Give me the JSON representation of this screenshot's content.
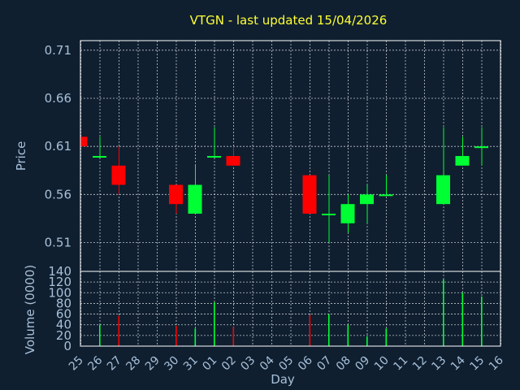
{
  "chart_data": {
    "type": "candlestick",
    "title": "VTGN - last updated 15/04/2026",
    "xlabel": "Day",
    "ylabel_price": "Price",
    "ylabel_volume": "Volume (0000)",
    "price_ylim": [
      0.48,
      0.72
    ],
    "price_ticks": [
      "0.71",
      "0.66",
      "0.61",
      "0.56",
      "0.51"
    ],
    "volume_ylim": [
      0,
      140
    ],
    "volume_ticks": [
      "140",
      "120",
      "100",
      "80",
      "60",
      "40",
      "20",
      "0"
    ],
    "grid": true,
    "colors": {
      "up": "#00ff33",
      "down": "#ff0000",
      "title": "#ffff33",
      "text": "#a8c0d8",
      "background": "#0f1f30"
    },
    "days": [
      {
        "label": "25",
        "open": 0.62,
        "high": 0.62,
        "low": 0.61,
        "close": 0.61,
        "volume": 0
      },
      {
        "label": "26",
        "open": 0.6,
        "high": 0.62,
        "low": 0.6,
        "close": 0.6,
        "volume": 40
      },
      {
        "label": "27",
        "open": 0.59,
        "high": 0.61,
        "low": 0.56,
        "close": 0.57,
        "volume": 57
      },
      {
        "label": "28"
      },
      {
        "label": "29"
      },
      {
        "label": "30",
        "open": 0.57,
        "high": 0.57,
        "low": 0.54,
        "close": 0.55,
        "volume": 38
      },
      {
        "label": "31",
        "open": 0.54,
        "high": 0.59,
        "low": 0.54,
        "close": 0.57,
        "volume": 33
      },
      {
        "label": "01",
        "open": 0.6,
        "high": 0.63,
        "low": 0.6,
        "close": 0.6,
        "volume": 82
      },
      {
        "label": "02",
        "open": 0.6,
        "high": 0.61,
        "low": 0.59,
        "close": 0.59,
        "volume": 36
      },
      {
        "label": "03"
      },
      {
        "label": "04"
      },
      {
        "label": "05"
      },
      {
        "label": "06",
        "open": 0.58,
        "high": 0.58,
        "low": 0.54,
        "close": 0.54,
        "volume": 58
      },
      {
        "label": "07",
        "open": 0.54,
        "high": 0.58,
        "low": 0.51,
        "close": 0.54,
        "volume": 60
      },
      {
        "label": "08",
        "open": 0.53,
        "high": 0.56,
        "low": 0.52,
        "close": 0.55,
        "volume": 40
      },
      {
        "label": "09",
        "open": 0.55,
        "high": 0.57,
        "low": 0.53,
        "close": 0.56,
        "volume": 18
      },
      {
        "label": "10",
        "open": 0.56,
        "high": 0.58,
        "low": 0.56,
        "close": 0.56,
        "volume": 33
      },
      {
        "label": "11"
      },
      {
        "label": "12"
      },
      {
        "label": "13",
        "open": 0.55,
        "high": 0.63,
        "low": 0.55,
        "close": 0.58,
        "volume": 125
      },
      {
        "label": "14",
        "open": 0.59,
        "high": 0.62,
        "low": 0.59,
        "close": 0.6,
        "volume": 100
      },
      {
        "label": "15",
        "open": 0.61,
        "high": 0.63,
        "low": 0.59,
        "close": 0.61,
        "volume": 93
      },
      {
        "label": "16"
      }
    ]
  }
}
